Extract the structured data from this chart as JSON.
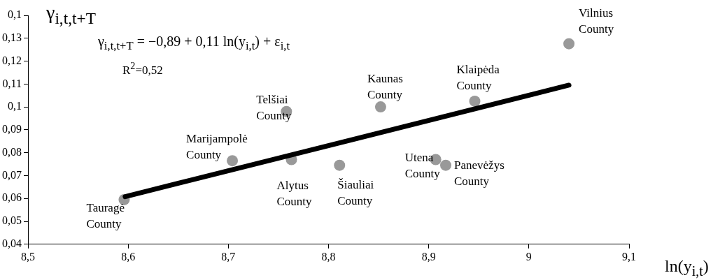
{
  "chart_data": {
    "type": "scatter",
    "xlabel": "ln(y$_{i,t}$)",
    "ylabel": "γ$_{i,t,t+T}$",
    "annotations": [
      "γ$_{i,t,t+T}$ = −0,89 + 0,11 ln(y$_{i,t}$) + ε$_{i,t}$",
      "R$^{2}$=0,52"
    ],
    "xlim": [
      8.5,
      9.1
    ],
    "xticks": [
      {
        "value": 8.5,
        "label": "8,5"
      },
      {
        "value": 8.6,
        "label": "8,6"
      },
      {
        "value": 8.7,
        "label": "8,7"
      },
      {
        "value": 8.8,
        "label": "8,8"
      },
      {
        "value": 8.9,
        "label": "8,9"
      },
      9,
      {
        "value": 9.1,
        "label": "9,1"
      }
    ],
    "ylim": [
      0.04,
      0.14
    ],
    "yticks": [
      {
        "value": 0.04,
        "label": "0,04"
      },
      {
        "value": 0.05,
        "label": "0,05"
      },
      {
        "value": 0.06,
        "label": "0,06"
      },
      {
        "value": 0.07,
        "label": "0,07"
      },
      {
        "value": 0.08,
        "label": "0,08"
      },
      {
        "value": 0.09,
        "label": "0,09"
      },
      {
        "value": 0.1,
        "label": "0,1"
      },
      {
        "value": 0.11,
        "label": "0,11"
      },
      {
        "value": 0.12,
        "label": "0,12"
      },
      {
        "value": 0.13,
        "label": "0,13"
      },
      {
        "value": 0.14,
        "label": "0,1"
      }
    ],
    "grid": false,
    "legend": false,
    "marker": "circle",
    "series": [
      {
        "type": "scatter",
        "color": "#999999",
        "x": [
          8.596,
          8.704,
          8.758,
          8.763,
          8.811,
          8.852,
          8.907,
          8.917,
          8.946,
          9.04
        ],
        "values": [
          0.0595,
          0.0765,
          0.098,
          0.077,
          0.0745,
          0.1,
          0.077,
          0.0745,
          0.1025,
          0.1276
        ],
        "value_labels": [
          "Tauragė\nCounty",
          "Marijampolė\nCounty",
          "Telšiai\nCounty",
          "Alytus\nCounty",
          "Šiauliai\nCounty",
          "Kaunas\nCounty",
          "Utena\nCounty",
          "Panevėžys\nCounty",
          "Klaipėda\nCounty",
          "Vilnius\nCounty"
        ]
      },
      {
        "type": "line",
        "color": "#000000",
        "x": [
          8.597,
          9.04
        ],
        "values": [
          0.0608,
          0.1095
        ],
        "marker": "none",
        "line_style": "solid"
      }
    ]
  }
}
